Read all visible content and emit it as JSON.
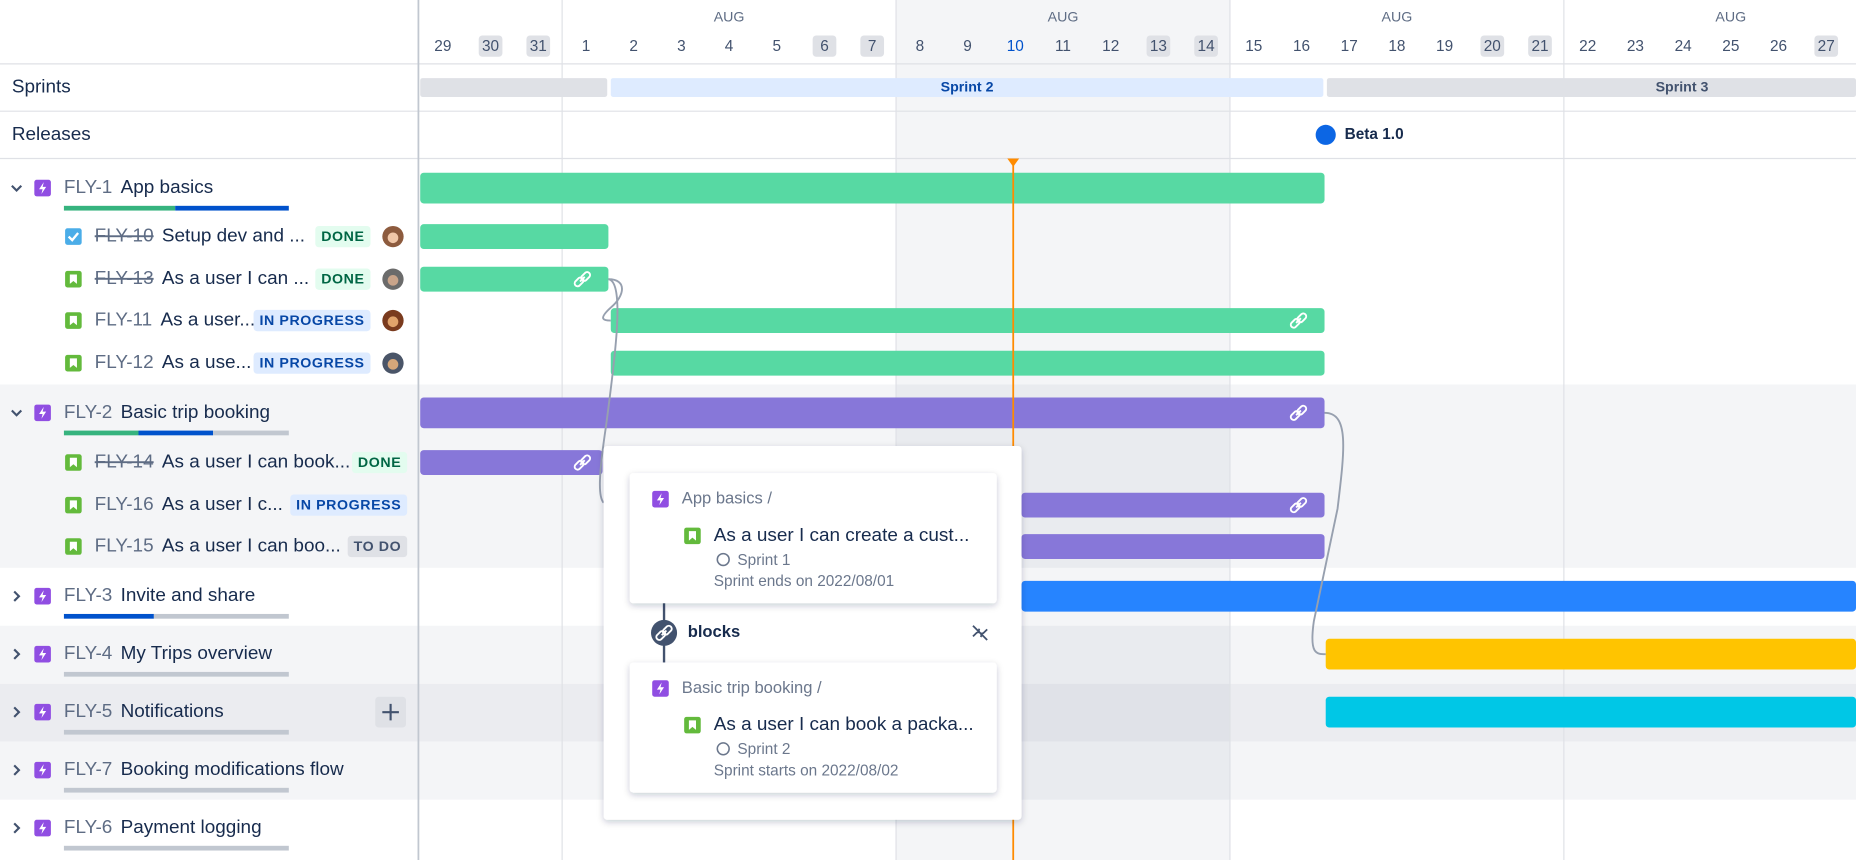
{
  "timeline": {
    "months": [
      "AUG",
      "AUG",
      "AUG",
      "AUG"
    ],
    "days": [
      29,
      30,
      31,
      1,
      2,
      3,
      4,
      5,
      6,
      7,
      8,
      9,
      10,
      11,
      12,
      13,
      14,
      15,
      16,
      17,
      18,
      19,
      20,
      21,
      22,
      23,
      24,
      25,
      26,
      27
    ],
    "sprints_label": "Sprints",
    "releases_label": "Releases",
    "sprints": [
      "Sprint 2",
      "Sprint 3"
    ],
    "release": "Beta 1.0"
  },
  "epics": [
    {
      "key": "FLY-1",
      "summary": "App basics",
      "children": [
        {
          "key": "FLY-10",
          "summary": "Setup dev and ...",
          "status": "DONE"
        },
        {
          "key": "FLY-13",
          "summary": "As a user I can ...",
          "status": "DONE"
        },
        {
          "key": "FLY-11",
          "summary": "As a user...",
          "status": "IN PROGRESS"
        },
        {
          "key": "FLY-12",
          "summary": "As a use...",
          "status": "IN PROGRESS"
        }
      ]
    },
    {
      "key": "FLY-2",
      "summary": "Basic trip booking",
      "children": [
        {
          "key": "FLY-14",
          "summary": "As a user I can book...",
          "status": "DONE"
        },
        {
          "key": "FLY-16",
          "summary": "As a user I c...",
          "status": "IN PROGRESS"
        },
        {
          "key": "FLY-15",
          "summary": "As a user I can boo...",
          "status": "TO DO"
        }
      ]
    },
    {
      "key": "FLY-3",
      "summary": "Invite and share",
      "children": []
    },
    {
      "key": "FLY-4",
      "summary": "My Trips overview",
      "children": []
    },
    {
      "key": "FLY-5",
      "summary": "Notifications",
      "children": []
    },
    {
      "key": "FLY-7",
      "summary": "Booking modifications flow",
      "children": []
    },
    {
      "key": "FLY-6",
      "summary": "Payment logging",
      "children": []
    }
  ],
  "popup": {
    "from": {
      "epic": "App basics /",
      "summary": "As a user I can create a cust...",
      "sprint": "Sprint 1",
      "note": "Sprint ends on 2022/08/01"
    },
    "relation": "blocks",
    "to": {
      "epic": "Basic trip booking /",
      "summary": "As a user I can book a packa...",
      "sprint": "Sprint 2",
      "note": "Sprint starts on 2022/08/02"
    }
  }
}
